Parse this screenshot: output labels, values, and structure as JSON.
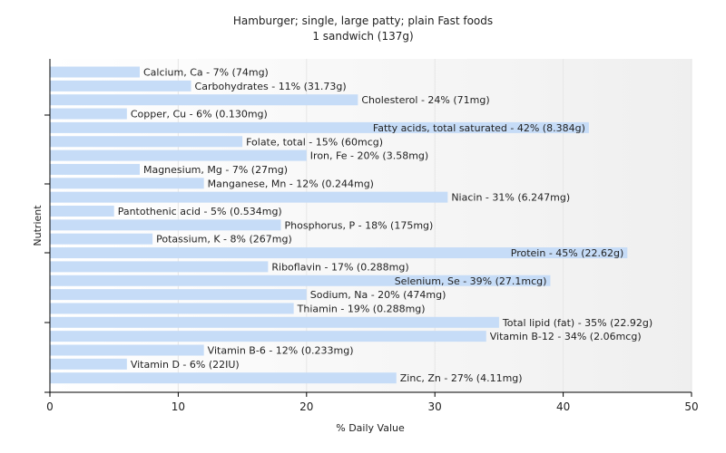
{
  "chart_data": {
    "type": "bar",
    "orientation": "horizontal",
    "title": "Hamburger; single, large patty; plain Fast foods",
    "subtitle": "1 sandwich (137g)",
    "xlabel": "% Daily Value",
    "ylabel": "Nutrient",
    "xlim": [
      0,
      50
    ],
    "xticks": [
      0,
      10,
      20,
      30,
      40,
      50
    ],
    "grid": true,
    "colors": {
      "bar": "#c6dcf7",
      "axis": "#000000",
      "grid": "#e6e6e6"
    },
    "categories": [
      "Calcium, Ca",
      "Carbohydrates",
      "Cholesterol",
      "Copper, Cu",
      "Fatty acids, total saturated",
      "Folate, total",
      "Iron, Fe",
      "Magnesium, Mg",
      "Manganese, Mn",
      "Niacin",
      "Pantothenic acid",
      "Phosphorus, P",
      "Potassium, K",
      "Protein",
      "Riboflavin",
      "Selenium, Se",
      "Sodium, Na",
      "Thiamin",
      "Total lipid (fat)",
      "Vitamin B-12",
      "Vitamin B-6",
      "Vitamin D",
      "Zinc, Zn"
    ],
    "values": [
      7,
      11,
      24,
      6,
      42,
      15,
      20,
      7,
      12,
      31,
      5,
      18,
      8,
      45,
      17,
      39,
      20,
      19,
      35,
      34,
      12,
      6,
      27
    ],
    "data_labels": [
      "Calcium, Ca - 7% (74mg)",
      "Carbohydrates - 11% (31.73g)",
      "Cholesterol - 24% (71mg)",
      "Copper, Cu - 6% (0.130mg)",
      "Fatty acids, total saturated - 42% (8.384g)",
      "Folate, total - 15% (60mcg)",
      "Iron, Fe - 20% (3.58mg)",
      "Magnesium, Mg - 7% (27mg)",
      "Manganese, Mn - 12% (0.244mg)",
      "Niacin - 31% (6.247mg)",
      "Pantothenic acid - 5% (0.534mg)",
      "Phosphorus, P - 18% (175mg)",
      "Potassium, K - 8% (267mg)",
      "Protein - 45% (22.62g)",
      "Riboflavin - 17% (0.288mg)",
      "Selenium, Se - 39% (27.1mcg)",
      "Sodium, Na - 20% (474mg)",
      "Thiamin - 19% (0.288mg)",
      "Total lipid (fat) - 35% (22.92g)",
      "Vitamin B-12 - 34% (2.06mcg)",
      "Vitamin B-6 - 12% (0.233mg)",
      "Vitamin D - 6% (22IU)",
      "Zinc, Zn - 27% (4.11mg)"
    ]
  }
}
